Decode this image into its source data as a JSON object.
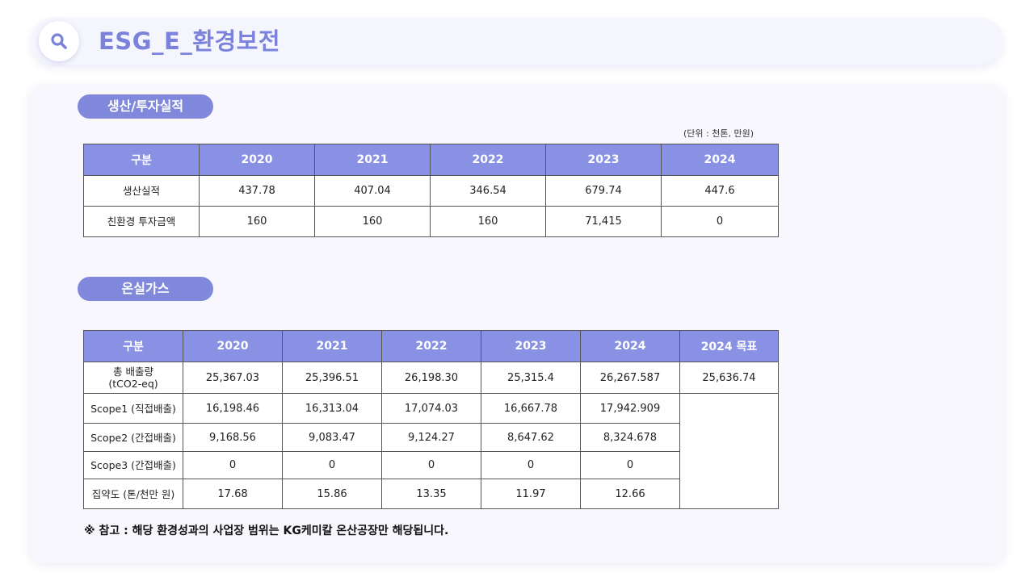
{
  "header": {
    "title": "ESG_E_환경보전",
    "icon": "search-icon"
  },
  "production": {
    "section_label": "생산/투자실적",
    "unit": "(단위 : 천톤, 만원)",
    "columns": [
      "구분",
      "2020",
      "2021",
      "2022",
      "2023",
      "2024"
    ],
    "rows": [
      {
        "label": "생산실적",
        "values": [
          "437.78",
          "407.04",
          "346.54",
          "679.74",
          "447.6"
        ]
      },
      {
        "label": "친환경 투자금액",
        "values": [
          "160",
          "160",
          "160",
          "71,415",
          "0"
        ]
      }
    ]
  },
  "ghg": {
    "section_label": "온실가스",
    "columns": [
      "구분",
      "2020",
      "2021",
      "2022",
      "2023",
      "2024",
      "2024 목표"
    ],
    "total": {
      "label_line1": "총 배출량",
      "label_line2": "(tCO2-eq)",
      "values": [
        "25,367.03",
        "25,396.51",
        "26,198.30",
        "25,315.4",
        "26,267.587"
      ],
      "target": "25,636.74"
    },
    "rows": [
      {
        "label": "Scope1 (직접배출)",
        "values": [
          "16,198.46",
          "16,313.04",
          "17,074.03",
          "16,667.78",
          "17,942.909"
        ]
      },
      {
        "label": "Scope2 (간접배출)",
        "values": [
          "9,168.56",
          "9,083.47",
          "9,124.27",
          "8,647.62",
          "8,324.678"
        ]
      },
      {
        "label": "Scope3 (간접배출)",
        "values": [
          "0",
          "0",
          "0",
          "0",
          "0"
        ]
      },
      {
        "label": "집약도 (톤/천만 원)",
        "values": [
          "17.68",
          "15.86",
          "13.35",
          "11.97",
          "12.66"
        ]
      }
    ]
  },
  "note": "※ 참고 : 해당 환경성과의 사업장 범위는 KG케미칼 온산공장만 해당됩니다."
}
